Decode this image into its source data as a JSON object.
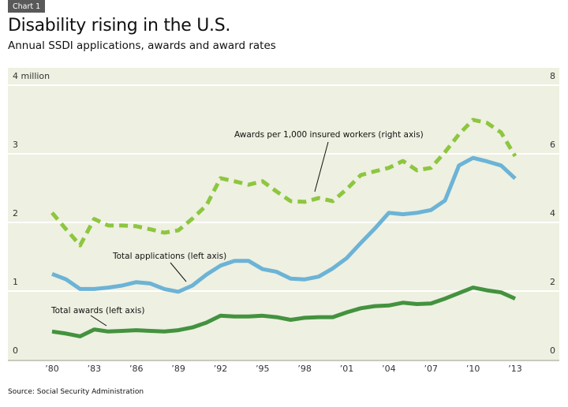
{
  "header": {
    "badge": "Chart 1",
    "title": "Disability rising in the U.S.",
    "subtitle": "Annual SSDI applications, awards and award rates"
  },
  "footer": {
    "source": "Source: Social Security Administration"
  },
  "colors": {
    "panel_bg": "#eef0e1",
    "gridline": "#ffffff",
    "axis_line": "#c8c9bd",
    "applications": "#6cb3d6",
    "awards": "#43923f",
    "award_rate": "#8dc63f"
  },
  "chart_data": {
    "type": "line",
    "title": "Disability rising in the U.S.",
    "subtitle": "Annual SSDI applications, awards and award rates",
    "xlabel": "",
    "ylabel_left": "million",
    "ylabel_right": "",
    "xlim": [
      1980,
      2013
    ],
    "ylim_left": [
      0,
      4
    ],
    "ylim_right": [
      0,
      8
    ],
    "grid": true,
    "x_ticks": [
      1980,
      1983,
      1986,
      1989,
      1992,
      1995,
      1998,
      2001,
      2004,
      2007,
      2010,
      2013
    ],
    "x_tick_labels": [
      "’80",
      "’83",
      "’86",
      "’89",
      "’92",
      "’95",
      "’98",
      "’01",
      "’04",
      "’07",
      "’10",
      "’13"
    ],
    "y_ticks_left": [
      0,
      1,
      2,
      3,
      4
    ],
    "y_tick_labels_left": [
      "0",
      "1",
      "2",
      "3",
      "4 million"
    ],
    "y_ticks_right": [
      0,
      2,
      4,
      6,
      8
    ],
    "y_tick_labels_right": [
      "0",
      "2",
      "4",
      "6",
      "8"
    ],
    "x": [
      1980,
      1981,
      1982,
      1983,
      1984,
      1985,
      1986,
      1987,
      1988,
      1989,
      1990,
      1991,
      1992,
      1993,
      1994,
      1995,
      1996,
      1997,
      1998,
      1999,
      2000,
      2001,
      2002,
      2003,
      2004,
      2005,
      2006,
      2007,
      2008,
      2009,
      2010,
      2011,
      2012,
      2013
    ],
    "series": [
      {
        "name": "Total applications (left axis)",
        "axis": "left",
        "style": "solid",
        "values": [
          1.25,
          1.17,
          1.03,
          1.03,
          1.05,
          1.08,
          1.13,
          1.11,
          1.03,
          0.99,
          1.08,
          1.24,
          1.37,
          1.44,
          1.44,
          1.32,
          1.28,
          1.18,
          1.17,
          1.21,
          1.33,
          1.48,
          1.7,
          1.91,
          2.14,
          2.12,
          2.14,
          2.18,
          2.32,
          2.83,
          2.94,
          2.89,
          2.83,
          2.64
        ]
      },
      {
        "name": "Total awards (left axis)",
        "axis": "left",
        "style": "solid",
        "values": [
          0.41,
          0.38,
          0.34,
          0.44,
          0.41,
          0.42,
          0.43,
          0.42,
          0.41,
          0.43,
          0.47,
          0.54,
          0.64,
          0.63,
          0.63,
          0.64,
          0.62,
          0.58,
          0.61,
          0.62,
          0.62,
          0.69,
          0.75,
          0.78,
          0.79,
          0.83,
          0.81,
          0.82,
          0.89,
          0.97,
          1.05,
          1.01,
          0.98,
          0.89
        ]
      },
      {
        "name": "Awards per 1,000 insured workers (right axis)",
        "axis": "right",
        "style": "dashed",
        "values": [
          4.28,
          3.8,
          3.33,
          4.1,
          3.91,
          3.91,
          3.89,
          3.8,
          3.7,
          3.77,
          4.11,
          4.5,
          5.29,
          5.2,
          5.1,
          5.2,
          4.9,
          4.62,
          4.6,
          4.71,
          4.62,
          4.97,
          5.38,
          5.49,
          5.59,
          5.79,
          5.52,
          5.59,
          6.05,
          6.57,
          6.99,
          6.9,
          6.62,
          5.93
        ]
      }
    ],
    "annotations": [
      {
        "text": "Awards per 1,000 insured workers (right axis)",
        "series": 2
      },
      {
        "text": "Total applications (left axis)",
        "series": 0
      },
      {
        "text": "Total awards (left axis)",
        "series": 1
      }
    ]
  }
}
